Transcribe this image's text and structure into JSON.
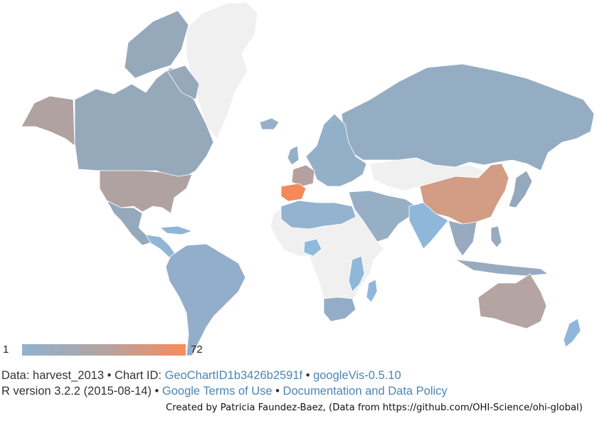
{
  "map": {
    "dataset": "harvest_2013",
    "legend": {
      "min_label": "1",
      "max_label": "72",
      "min_color": "#8fb2cf",
      "mid_color": "#b3a3a3",
      "max_color": "#f98c5a"
    },
    "no_data_color": "#f0f0f0",
    "regions": [
      {
        "name": "Canada",
        "level": 0.12,
        "color": "#95a9bb"
      },
      {
        "name": "Alaska (USA)",
        "level": 0.45,
        "color": "#b0a2a1"
      },
      {
        "name": "United States",
        "level": 0.45,
        "color": "#b0a2a1"
      },
      {
        "name": "Mexico",
        "level": 0.12,
        "color": "#95a9bb"
      },
      {
        "name": "Central America",
        "level": 0.05,
        "color": "#8fb6d6"
      },
      {
        "name": "South America",
        "level": 0.08,
        "color": "#93aecb"
      },
      {
        "name": "Greenland",
        "level": null,
        "color": "#f0f0f0"
      },
      {
        "name": "Iceland",
        "level": 0.06,
        "color": "#97b0c8"
      },
      {
        "name": "Spain",
        "level": 1.0,
        "color": "#f4895a"
      },
      {
        "name": "France",
        "level": 0.4,
        "color": "#b4a0a0"
      },
      {
        "name": "Europe",
        "level": 0.08,
        "color": "#93b0c9"
      },
      {
        "name": "Russia",
        "level": 0.1,
        "color": "#94adc3"
      },
      {
        "name": "China",
        "level": 0.65,
        "color": "#d39c85"
      },
      {
        "name": "Kazakhstan / Mongolia",
        "level": null,
        "color": "#f0f0f0"
      },
      {
        "name": "Middle East",
        "level": 0.07,
        "color": "#97afc5"
      },
      {
        "name": "India",
        "level": 0.05,
        "color": "#8fb7d9"
      },
      {
        "name": "Southeast Asia",
        "level": 0.1,
        "color": "#97aac0"
      },
      {
        "name": "Japan",
        "level": 0.12,
        "color": "#95a9bd"
      },
      {
        "name": "Africa",
        "level": null,
        "color": "#f0f0f0"
      },
      {
        "name": "North Africa",
        "level": 0.05,
        "color": "#93b3cf"
      },
      {
        "name": "Nigeria",
        "level": 0.03,
        "color": "#8fbadc"
      },
      {
        "name": "East Africa coast",
        "level": 0.05,
        "color": "#8fb7d9"
      },
      {
        "name": "South Africa",
        "level": 0.08,
        "color": "#93adc8"
      },
      {
        "name": "Madagascar",
        "level": 0.04,
        "color": "#8fb7da"
      },
      {
        "name": "Australia",
        "level": 0.4,
        "color": "#b4a5a2"
      },
      {
        "name": "New Zealand",
        "level": 0.03,
        "color": "#8fb7d9"
      }
    ]
  },
  "footer": {
    "line1_prefix": "Data: harvest_2013 • Chart ID: ",
    "chart_id_link": "GeoChartID1b3426b2591f",
    "line1_sep": " • ",
    "googlevis_link": "googleVis-0.5.10",
    "line2_prefix": "R version 3.2.2 (2015-08-14) • ",
    "terms_link": "Google Terms of Use",
    "line2_sep": " • ",
    "policy_link": "Documentation and Data Policy"
  },
  "credit": "Created by Patricia Faundez-Baez, (Data from https://github.com/OHI-Science/ohi-global)"
}
